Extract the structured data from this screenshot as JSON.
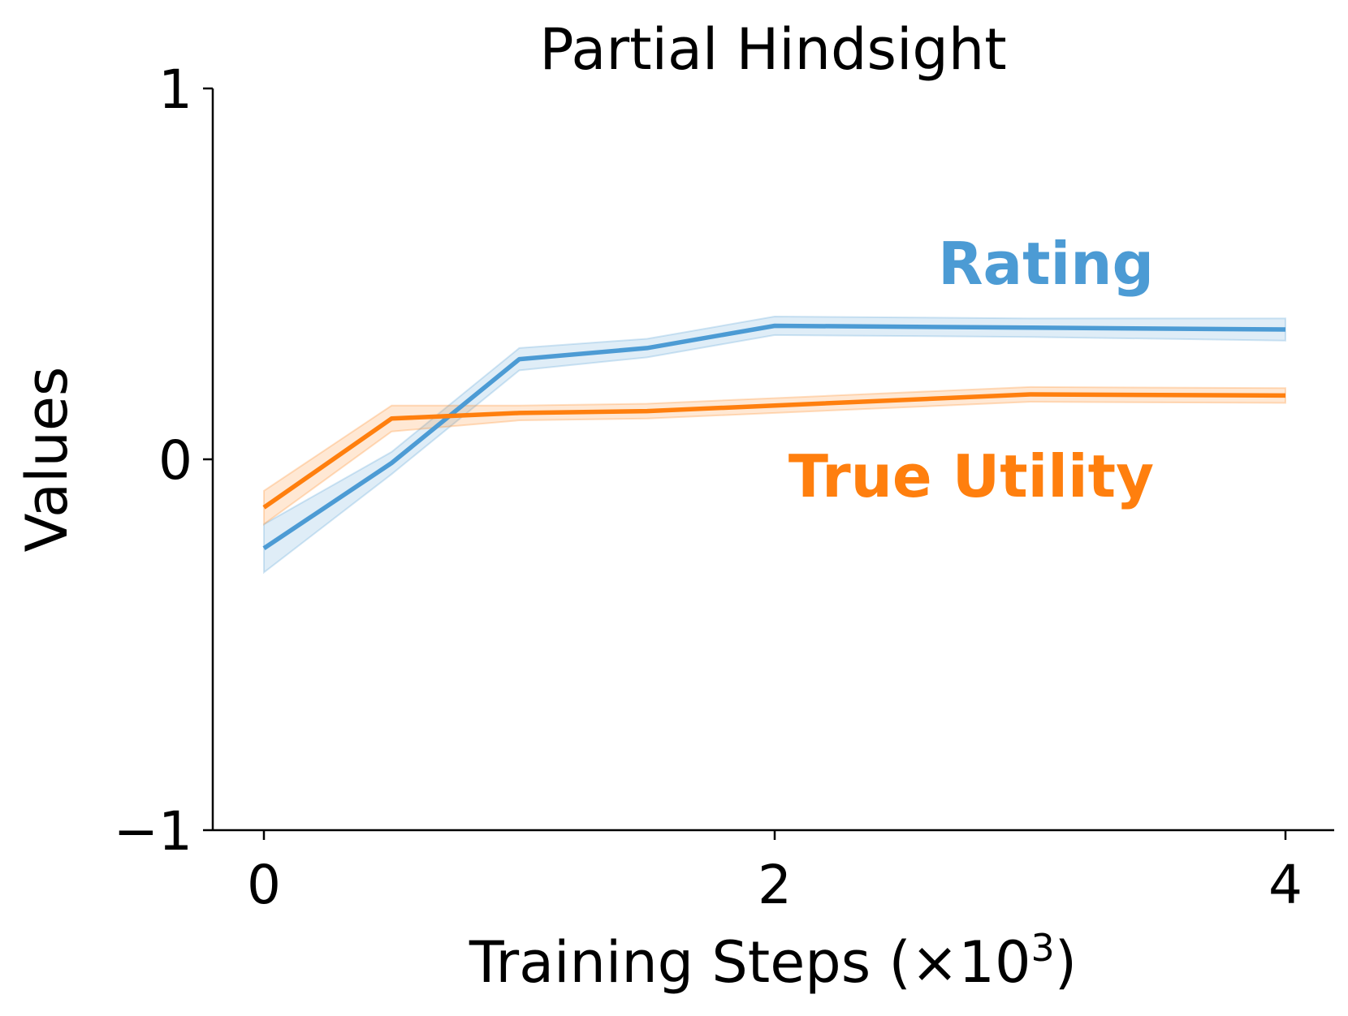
{
  "chart_data": {
    "type": "line",
    "title": "Partial Hindsight",
    "xlabel": "Training Steps (×10",
    "xlabel_exponent": "3",
    "xlabel_suffix": ")",
    "ylabel": "Values",
    "xlim": [
      -0.2,
      4.2
    ],
    "ylim": [
      -1,
      1
    ],
    "xticks": [
      0,
      2,
      4
    ],
    "xtick_labels": [
      "0",
      "2",
      "4"
    ],
    "yticks": [
      -1,
      0,
      1
    ],
    "ytick_labels": [
      "−1",
      "0",
      "1"
    ],
    "grid": false,
    "legend": "inline labels",
    "series": [
      {
        "name": "Rating",
        "color": "#4C9BD4",
        "x": [
          0,
          0.5,
          1,
          1.5,
          2,
          3,
          4
        ],
        "y": [
          -0.24,
          -0.01,
          0.27,
          0.3,
          0.36,
          0.355,
          0.35
        ],
        "ci": [
          0.065,
          0.03,
          0.03,
          0.025,
          0.025,
          0.025,
          0.03
        ]
      },
      {
        "name": "True Utility",
        "color": "#FF7F0E",
        "x": [
          0,
          0.5,
          1,
          1.5,
          2,
          3,
          4
        ],
        "y": [
          -0.13,
          0.11,
          0.125,
          0.13,
          0.145,
          0.175,
          0.172
        ],
        "ci": [
          0.045,
          0.035,
          0.02,
          0.02,
          0.02,
          0.02,
          0.02
        ]
      }
    ]
  }
}
